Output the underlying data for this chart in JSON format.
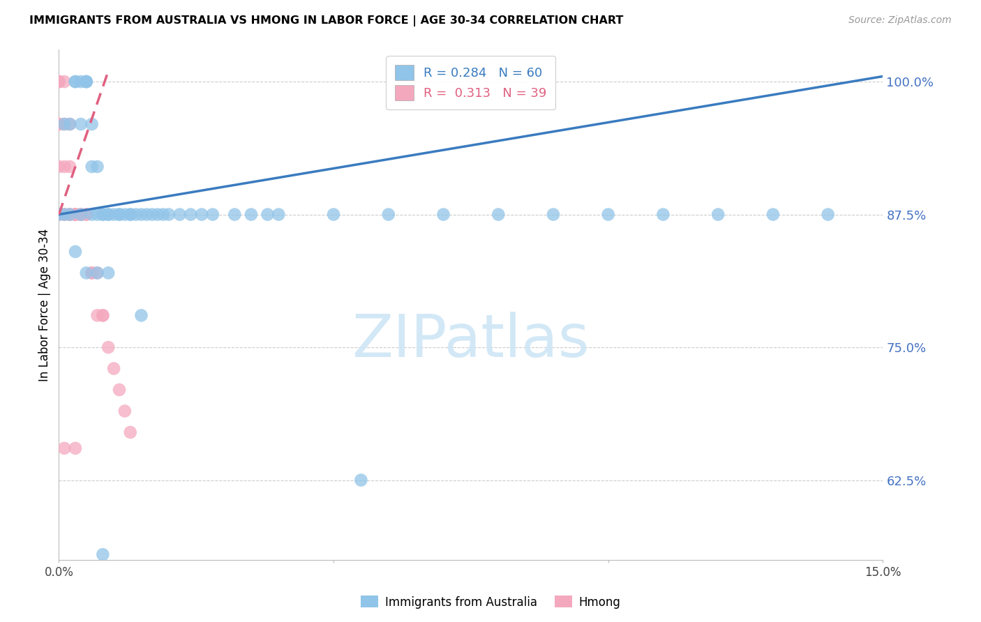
{
  "title": "IMMIGRANTS FROM AUSTRALIA VS HMONG IN LABOR FORCE | AGE 30-34 CORRELATION CHART",
  "source": "Source: ZipAtlas.com",
  "ylabel": "In Labor Force | Age 30-34",
  "xlim": [
    0.0,
    0.15
  ],
  "ylim": [
    0.55,
    1.03
  ],
  "yticks": [
    0.625,
    0.75,
    0.875,
    1.0
  ],
  "ytick_labels": [
    "62.5%",
    "75.0%",
    "87.5%",
    "100.0%"
  ],
  "xticks": [
    0.0,
    0.05,
    0.1,
    0.15
  ],
  "australia_R": 0.284,
  "australia_N": 60,
  "hmong_R": 0.313,
  "hmong_N": 39,
  "australia_color": "#90c4e8",
  "hmong_color": "#f4a8be",
  "australia_line_color": "#3a7bbf",
  "hmong_line_color": "#e06080",
  "aus_line_x0": 0.0,
  "aus_line_y0": 0.875,
  "aus_line_x1": 0.15,
  "aus_line_y1": 1.005,
  "hmong_line_x0": 0.0,
  "hmong_line_y0": 0.875,
  "hmong_line_x1": 0.009,
  "hmong_line_y1": 1.01,
  "australia_x": [
    0.0,
    0.001,
    0.001,
    0.002,
    0.002,
    0.003,
    0.003,
    0.004,
    0.004,
    0.004,
    0.005,
    0.005,
    0.005,
    0.006,
    0.006,
    0.006,
    0.007,
    0.007,
    0.008,
    0.008,
    0.009,
    0.009,
    0.01,
    0.011,
    0.011,
    0.012,
    0.013,
    0.013,
    0.014,
    0.015,
    0.016,
    0.017,
    0.018,
    0.019,
    0.02,
    0.022,
    0.024,
    0.026,
    0.028,
    0.032,
    0.035,
    0.038,
    0.04,
    0.05,
    0.06,
    0.07,
    0.08,
    0.09,
    0.1,
    0.11,
    0.12,
    0.13,
    0.14,
    0.003,
    0.005,
    0.007,
    0.009,
    0.015,
    0.008,
    0.055
  ],
  "australia_y": [
    0.875,
    0.96,
    0.875,
    0.96,
    0.875,
    1.0,
    1.0,
    1.0,
    0.96,
    0.875,
    1.0,
    1.0,
    1.0,
    0.96,
    0.875,
    0.92,
    0.92,
    0.875,
    0.875,
    0.875,
    0.875,
    0.875,
    0.875,
    0.875,
    0.875,
    0.875,
    0.875,
    0.875,
    0.875,
    0.875,
    0.875,
    0.875,
    0.875,
    0.875,
    0.875,
    0.875,
    0.875,
    0.875,
    0.875,
    0.875,
    0.875,
    0.875,
    0.875,
    0.875,
    0.875,
    0.875,
    0.875,
    0.875,
    0.875,
    0.875,
    0.875,
    0.875,
    0.875,
    0.84,
    0.82,
    0.82,
    0.82,
    0.78,
    0.555,
    0.625
  ],
  "hmong_x": [
    0.0,
    0.0,
    0.0,
    0.0,
    0.0,
    0.0,
    0.0,
    0.0,
    0.001,
    0.001,
    0.001,
    0.001,
    0.001,
    0.002,
    0.002,
    0.002,
    0.002,
    0.003,
    0.003,
    0.003,
    0.003,
    0.004,
    0.004,
    0.004,
    0.005,
    0.005,
    0.006,
    0.006,
    0.007,
    0.007,
    0.008,
    0.008,
    0.009,
    0.01,
    0.011,
    0.012,
    0.013,
    0.003,
    0.001
  ],
  "hmong_y": [
    1.0,
    1.0,
    1.0,
    0.96,
    0.96,
    0.92,
    0.875,
    0.875,
    1.0,
    0.96,
    0.92,
    0.875,
    0.875,
    0.96,
    0.92,
    0.875,
    0.875,
    0.875,
    0.875,
    0.875,
    0.875,
    0.875,
    0.875,
    0.875,
    0.875,
    0.875,
    0.82,
    0.82,
    0.82,
    0.78,
    0.78,
    0.78,
    0.75,
    0.73,
    0.71,
    0.69,
    0.67,
    0.655,
    0.655
  ]
}
